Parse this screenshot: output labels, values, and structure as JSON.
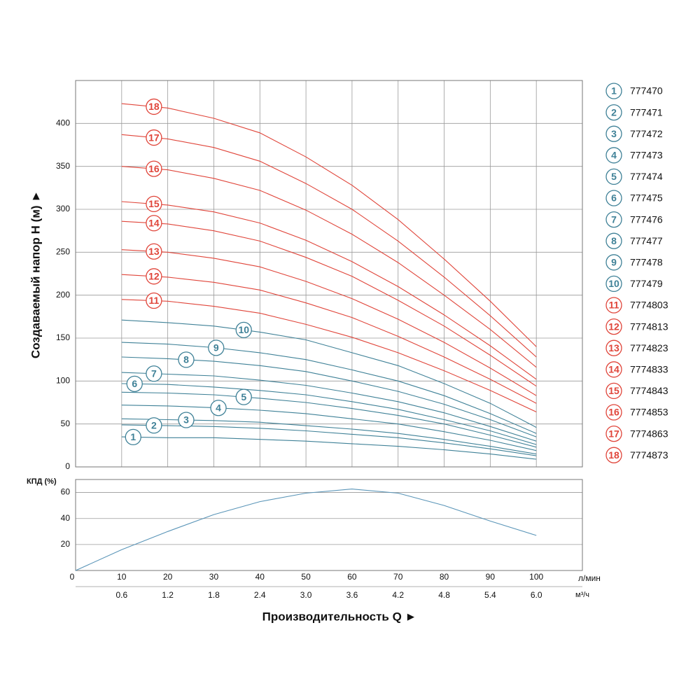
{
  "chart_data": [
    {
      "type": "line",
      "y_label": "Создаваемый напор H (м) ►",
      "xlim": [
        0,
        110
      ],
      "ylim": [
        0,
        450
      ],
      "yticks": [
        0,
        50,
        100,
        150,
        200,
        250,
        300,
        350,
        400
      ],
      "grid": true,
      "legend": "right",
      "x": [
        10,
        20,
        30,
        40,
        50,
        60,
        70,
        80,
        90,
        100
      ],
      "series": [
        {
          "name": "777470",
          "label": "1",
          "color": "#3f8197",
          "values": [
            35,
            34,
            34,
            32,
            30,
            27,
            24,
            20,
            15,
            9
          ]
        },
        {
          "name": "777471",
          "label": "2",
          "color": "#3f8197",
          "values": [
            49,
            48,
            47,
            45,
            42,
            38,
            34,
            28,
            21,
            13
          ]
        },
        {
          "name": "777472",
          "label": "3",
          "color": "#3f8197",
          "values": [
            56,
            55,
            54,
            52,
            48,
            44,
            39,
            32,
            24,
            15
          ]
        },
        {
          "name": "777473",
          "label": "4",
          "color": "#3f8197",
          "values": [
            72,
            71,
            69,
            66,
            62,
            56,
            50,
            41,
            31,
            19
          ]
        },
        {
          "name": "777474",
          "label": "5",
          "color": "#3f8197",
          "values": [
            87,
            86,
            84,
            80,
            75,
            68,
            60,
            50,
            37,
            23
          ]
        },
        {
          "name": "777475",
          "label": "6",
          "color": "#3f8197",
          "values": [
            97,
            96,
            93,
            89,
            84,
            76,
            67,
            55,
            42,
            26
          ]
        },
        {
          "name": "777476",
          "label": "7",
          "color": "#3f8197",
          "values": [
            110,
            108,
            106,
            101,
            95,
            86,
            76,
            63,
            47,
            30
          ]
        },
        {
          "name": "777477",
          "label": "8",
          "color": "#3f8197",
          "values": [
            128,
            126,
            123,
            118,
            111,
            100,
            88,
            73,
            55,
            35
          ]
        },
        {
          "name": "777478",
          "label": "9",
          "color": "#3f8197",
          "values": [
            145,
            143,
            139,
            133,
            125,
            113,
            100,
            83,
            62,
            39
          ]
        },
        {
          "name": "777479",
          "label": "10",
          "color": "#3f8197",
          "values": [
            171,
            168,
            164,
            157,
            148,
            133,
            118,
            97,
            74,
            46
          ]
        },
        {
          "name": "7774803",
          "label": "11",
          "color": "#e0453a",
          "values": [
            195,
            193,
            187,
            179,
            166,
            151,
            133,
            112,
            89,
            64
          ]
        },
        {
          "name": "7774813",
          "label": "12",
          "color": "#e0453a",
          "values": [
            224,
            221,
            215,
            206,
            191,
            174,
            152,
            128,
            102,
            74
          ]
        },
        {
          "name": "7774823",
          "label": "13",
          "color": "#e0453a",
          "values": [
            253,
            250,
            243,
            233,
            216,
            196,
            172,
            145,
            115,
            83
          ]
        },
        {
          "name": "7774833",
          "label": "14",
          "color": "#e0453a",
          "values": [
            286,
            283,
            275,
            263,
            244,
            222,
            194,
            164,
            130,
            94
          ]
        },
        {
          "name": "7774843",
          "label": "15",
          "color": "#e0453a",
          "values": [
            309,
            305,
            297,
            284,
            264,
            239,
            210,
            177,
            141,
            102
          ]
        },
        {
          "name": "7774853",
          "label": "16",
          "color": "#e0453a",
          "values": [
            350,
            346,
            336,
            322,
            299,
            271,
            238,
            200,
            160,
            116
          ]
        },
        {
          "name": "7774863",
          "label": "17",
          "color": "#e0453a",
          "values": [
            387,
            382,
            372,
            356,
            330,
            300,
            263,
            221,
            176,
            128
          ]
        },
        {
          "name": "7774873",
          "label": "18",
          "color": "#e0453a",
          "values": [
            423,
            418,
            406,
            389,
            361,
            328,
            288,
            242,
            193,
            140
          ]
        }
      ]
    },
    {
      "type": "line",
      "y_label": "КПД (%)",
      "x_label": "Производительность Q ►",
      "x_unit": "л/мин",
      "x2_unit": "м³/ч",
      "xlim": [
        0,
        110
      ],
      "x2lim": [
        0,
        6.6
      ],
      "ylim": [
        0,
        70
      ],
      "yticks": [
        20,
        40,
        60
      ],
      "grid": true,
      "xticks": [
        0,
        10,
        20,
        30,
        40,
        50,
        60,
        70,
        80,
        90,
        100
      ],
      "x2ticks": [
        0.6,
        1.2,
        1.8,
        2.4,
        {
          "value": 3,
          "label": "3.0"
        },
        3.6,
        4.2,
        4.8,
        5.4,
        {
          "value": 6,
          "label": "6.0"
        }
      ],
      "x": [
        0,
        10,
        20,
        30,
        40,
        50,
        60,
        70,
        80,
        90,
        100
      ],
      "series": [
        {
          "color": "#5a95b8",
          "values": [
            0,
            16,
            30,
            43,
            53,
            59.5,
            62.7,
            59.5,
            50,
            38,
            27
          ]
        }
      ]
    }
  ]
}
